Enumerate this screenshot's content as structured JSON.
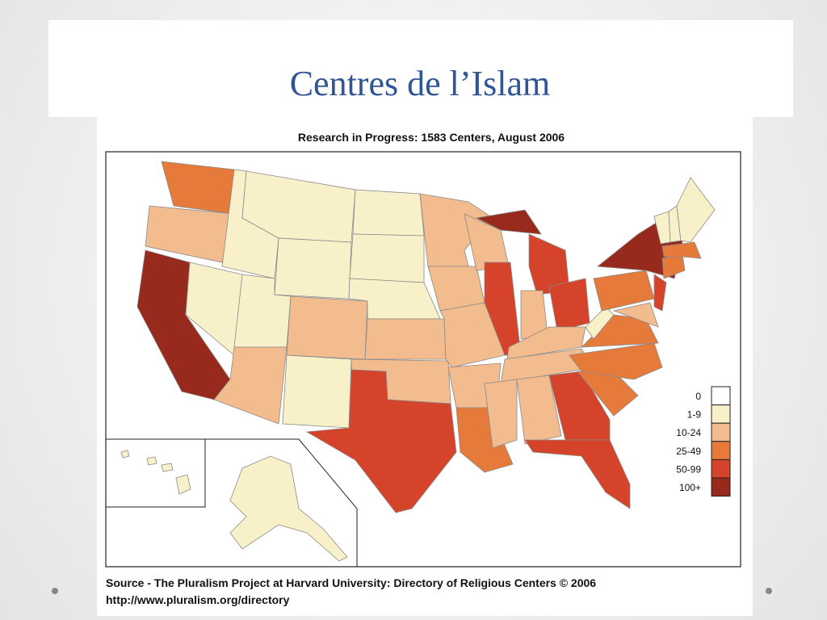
{
  "slide": {
    "title": "Centres de l’Islam"
  },
  "map": {
    "title": "Research in Progress: 1583 Centers, August 2006",
    "legend": [
      {
        "label": "0",
        "color": "#ffffff"
      },
      {
        "label": "1-9",
        "color": "#f8f0c8"
      },
      {
        "label": "10-24",
        "color": "#f2bc8e"
      },
      {
        "label": "25-49",
        "color": "#e67a3b"
      },
      {
        "label": "50-99",
        "color": "#d5432a"
      },
      {
        "label": "100+",
        "color": "#972a1c"
      }
    ],
    "source": "Source - The Pluralism Project at Harvard University: Directory of Religious Centers © 2006",
    "url": "http://www.pluralism.org/directory"
  }
}
